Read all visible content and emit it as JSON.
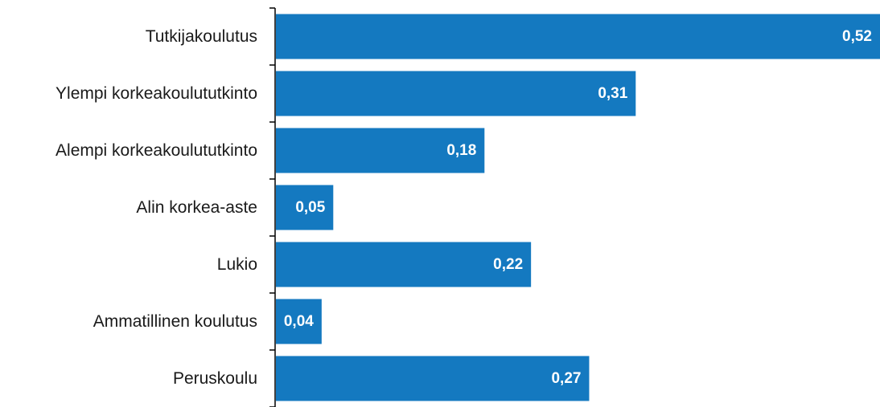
{
  "chart_data": {
    "type": "bar",
    "orientation": "horizontal",
    "categories": [
      "Tutkijakoulutus",
      "Ylempi korkeakoulututkinto",
      "Alempi korkeakoulututkinto",
      "Alin korkea-aste",
      "Lukio",
      "Ammatillinen koulutus",
      "Peruskoulu"
    ],
    "values": [
      0.52,
      0.31,
      0.18,
      0.05,
      0.22,
      0.04,
      0.27
    ],
    "value_labels": [
      "0,52",
      "0,31",
      "0,18",
      "0,05",
      "0,22",
      "0,04",
      "0,27"
    ],
    "title": "",
    "xlabel": "",
    "ylabel": "",
    "xlim": [
      0,
      0.52
    ],
    "grid": false,
    "legend": "none",
    "bar_color": "#1479c0",
    "value_label_color": "#ffffff",
    "axis_color": "#000000"
  }
}
